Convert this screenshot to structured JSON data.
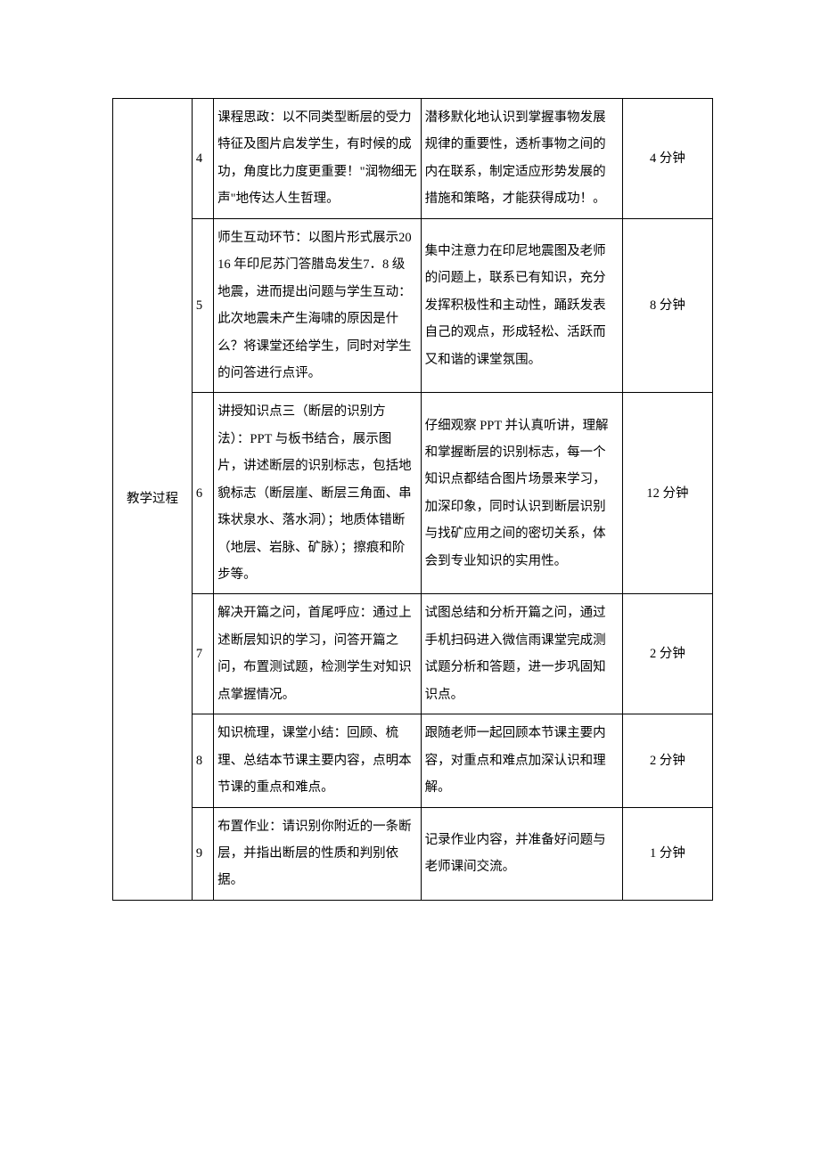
{
  "section_label": "教学过程",
  "rows": [
    {
      "num": "4",
      "teacher": "课程思政：以不同类型断层的受力特征及图片启发学生，有时候的成功，角度比力度更重要！\"润物细无声\"地传达人生哲理。",
      "student": "潜移默化地认识到掌握事物发展规律的重要性，透析事物之间的内在联系，制定适应形势发展的措施和策略，才能获得成功！。",
      "duration": "4 分钟"
    },
    {
      "num": "5",
      "teacher": "师生互动环节：以图片形式展示2016 年印尼苏门答腊岛发生7．8 级地震，进而提出问题与学生互动：此次地震未产生海啸的原因是什么？将课堂还给学生，同时对学生的问答进行点评。",
      "student": "集中注意力在印尼地震图及老师的问题上，联系已有知识，充分发挥积极性和主动性，踊跃发表自己的观点，形成轻松、活跃而又和谐的课堂氛围。",
      "duration": "8 分钟"
    },
    {
      "num": "6",
      "teacher": "讲授知识点三（断层的识别方法）：PPT 与板书结合，展示图片，讲述断层的识别标志，包括地貌标志（断层崖、断层三角面、串珠状泉水、落水洞）；地质体错断（地层、岩脉、矿脉）；擦痕和阶步等。",
      "student": "仔细观察 PPT 并认真听讲，理解和掌握断层的识别标志，每一个知识点都结合图片场景来学习，加深印象，同时认识到断层识别与找矿应用之间的密切关系，体会到专业知识的实用性。",
      "duration": "12 分钟"
    },
    {
      "num": "7",
      "teacher": "解决开篇之问，首尾呼应：通过上述断层知识的学习，问答开篇之问，布置测试题，检测学生对知识点掌握情况。",
      "student": "试图总结和分析开篇之问，通过手机扫码进入微信雨课堂完成测试题分析和答题，进一步巩固知识点。",
      "duration": "2 分钟"
    },
    {
      "num": "8",
      "teacher": "知识梳理，课堂小结：回顾、梳理、总结本节课主要内容，点明本节课的重点和难点。",
      "student": "跟随老师一起回顾本节课主要内容，对重点和难点加深认识和理解。",
      "duration": "2 分钟"
    },
    {
      "num": "9",
      "teacher": "布置作业：请识别你附近的一条断层，并指出断层的性质和判别依据。",
      "student": "记录作业内容，并准备好问题与老师课间交流。",
      "duration": "1 分钟"
    }
  ]
}
